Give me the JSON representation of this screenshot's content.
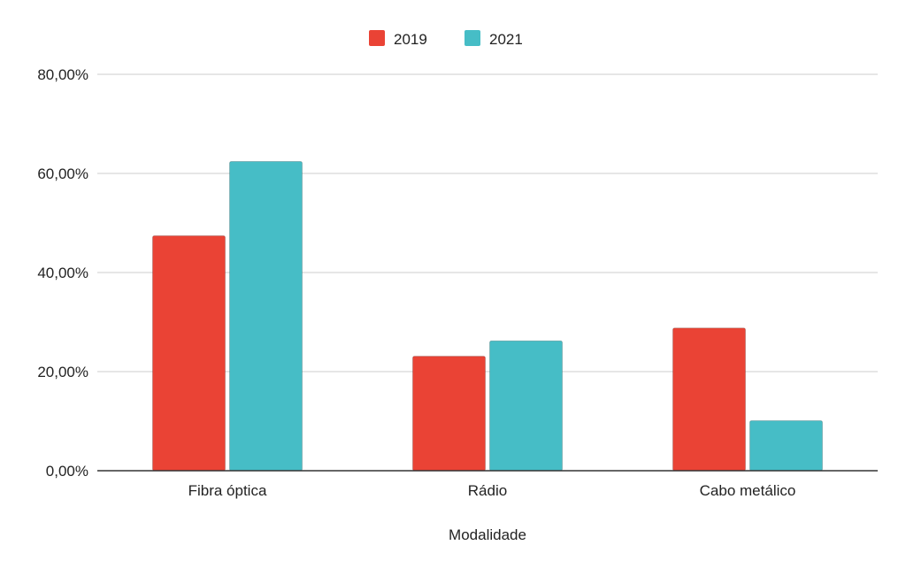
{
  "chart_data": {
    "type": "bar",
    "title": "",
    "xlabel": "Modalidade",
    "ylabel": "",
    "categories": [
      "Fibra óptica",
      "Rádio",
      "Cabo metálico"
    ],
    "series": [
      {
        "name": "2019",
        "color": "#ea4335",
        "values": [
          47.4,
          23.1,
          28.8
        ]
      },
      {
        "name": "2021",
        "color": "#46bdc6",
        "values": [
          62.4,
          26.2,
          10.1
        ]
      }
    ],
    "ylim": [
      0,
      80
    ],
    "yticks": [
      0,
      20,
      40,
      60,
      80
    ],
    "ytick_labels": [
      "0,00%",
      "20,00%",
      "40,00%",
      "60,00%",
      "80,00%"
    ],
    "grid": true,
    "legend_position": "top-center",
    "gridline_color": "#cccccc",
    "baseline_color": "#333333"
  }
}
